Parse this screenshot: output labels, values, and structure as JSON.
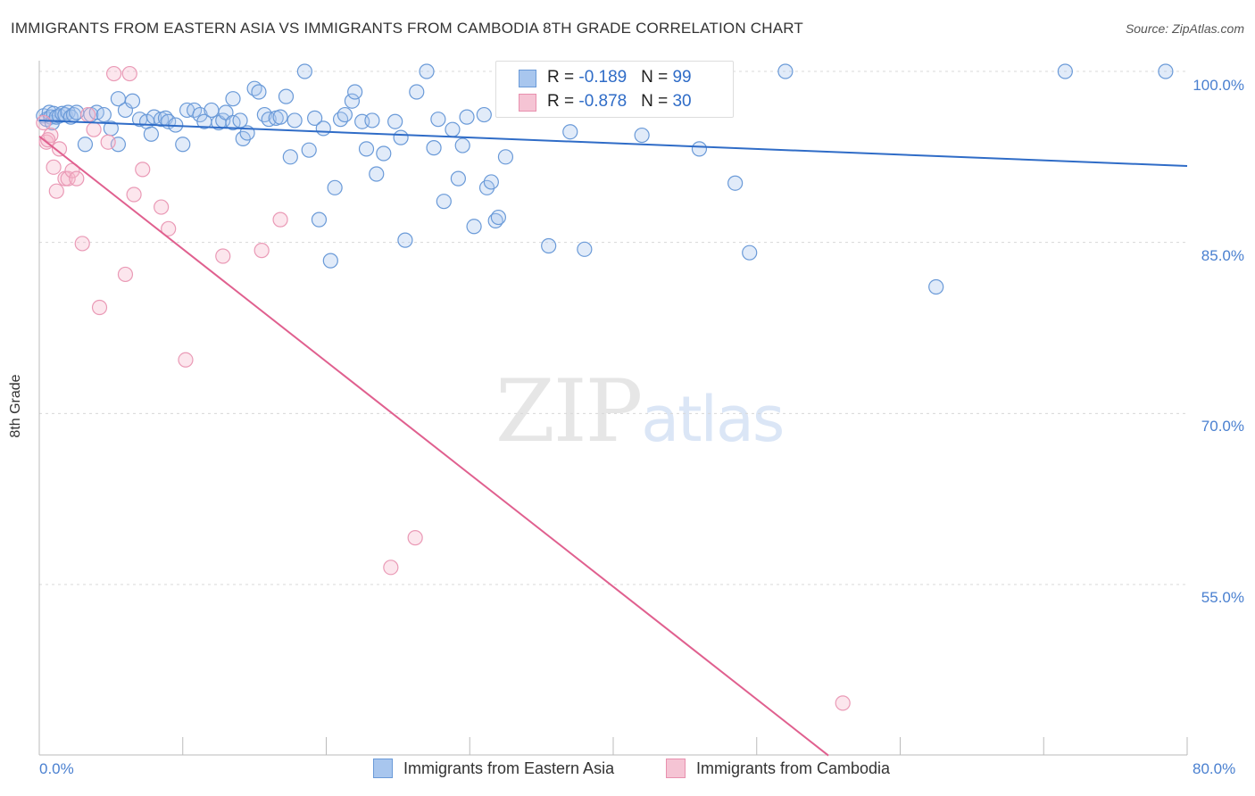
{
  "title": "IMMIGRANTS FROM EASTERN ASIA VS IMMIGRANTS FROM CAMBODIA 8TH GRADE CORRELATION CHART",
  "source": "Source: ZipAtlas.com",
  "watermark": {
    "zip": "ZIP",
    "atlas": "atlas"
  },
  "colors": {
    "blue": "#2f6cc7",
    "blue_fill": "#a8c6ee",
    "pink": "#e0608f",
    "pink_fill": "#f5b8cc",
    "tick_text": "#4a80d0"
  },
  "stats": [
    {
      "r_label": "R = ",
      "r_value": "-0.189",
      "n_label": "N = ",
      "n_value": "99"
    },
    {
      "r_label": "R = ",
      "r_value": "-0.878",
      "n_label": "N = ",
      "n_value": "30"
    }
  ],
  "legend": [
    "Immigrants from Eastern Asia",
    "Immigrants from Cambodia"
  ],
  "chart_data": {
    "type": "scatter",
    "title": "IMMIGRANTS FROM EASTERN ASIA VS IMMIGRANTS FROM CAMBODIA 8TH GRADE CORRELATION CHART",
    "xlabel": "",
    "ylabel": "8th Grade",
    "xlim": [
      0,
      80
    ],
    "ylim": [
      40,
      102.5
    ],
    "x_tick_labels": [
      "0.0%",
      "80.0%"
    ],
    "y_ticks": [
      100,
      85,
      70,
      55
    ],
    "y_tick_labels": [
      "100.0%",
      "85.0%",
      "70.0%",
      "55.0%"
    ],
    "grid": "horizontal dashed",
    "legend_position": "bottom",
    "series": [
      {
        "name": "Immigrants from Eastern Asia",
        "trend": [
          [
            0,
            95.7
          ],
          [
            80,
            91.7
          ]
        ],
        "points": [
          [
            0.3,
            96.1
          ],
          [
            0.5,
            95.8
          ],
          [
            0.7,
            96.4
          ],
          [
            0.8,
            96.0
          ],
          [
            0.9,
            95.5
          ],
          [
            1.0,
            96.3
          ],
          [
            1.2,
            96.0
          ],
          [
            1.4,
            96.1
          ],
          [
            1.6,
            96.3
          ],
          [
            1.8,
            96.2
          ],
          [
            2.0,
            96.4
          ],
          [
            2.2,
            96.0
          ],
          [
            2.4,
            96.2
          ],
          [
            2.6,
            96.4
          ],
          [
            3.2,
            93.6
          ],
          [
            3.6,
            96.2
          ],
          [
            4.0,
            96.4
          ],
          [
            4.5,
            96.2
          ],
          [
            5.0,
            95.0
          ],
          [
            5.5,
            93.6
          ],
          [
            5.5,
            97.6
          ],
          [
            6.0,
            96.6
          ],
          [
            6.5,
            97.4
          ],
          [
            7.0,
            95.8
          ],
          [
            7.5,
            95.6
          ],
          [
            7.8,
            94.5
          ],
          [
            8.0,
            96.0
          ],
          [
            8.5,
            95.8
          ],
          [
            8.8,
            95.9
          ],
          [
            9.0,
            95.6
          ],
          [
            9.5,
            95.3
          ],
          [
            10.0,
            93.6
          ],
          [
            10.3,
            96.6
          ],
          [
            10.8,
            96.6
          ],
          [
            11.2,
            96.2
          ],
          [
            11.5,
            95.6
          ],
          [
            12.0,
            96.6
          ],
          [
            12.5,
            95.5
          ],
          [
            12.8,
            95.7
          ],
          [
            13.0,
            96.4
          ],
          [
            13.5,
            95.5
          ],
          [
            13.5,
            97.6
          ],
          [
            14.0,
            95.7
          ],
          [
            14.2,
            94.1
          ],
          [
            14.5,
            94.6
          ],
          [
            15.0,
            98.5
          ],
          [
            15.3,
            98.2
          ],
          [
            15.7,
            96.2
          ],
          [
            16.0,
            95.8
          ],
          [
            16.5,
            95.9
          ],
          [
            16.8,
            96.0
          ],
          [
            17.2,
            97.8
          ],
          [
            17.5,
            92.5
          ],
          [
            17.8,
            95.7
          ],
          [
            18.5,
            100.0
          ],
          [
            18.8,
            93.1
          ],
          [
            19.2,
            95.9
          ],
          [
            19.5,
            87.0
          ],
          [
            19.8,
            95.0
          ],
          [
            20.3,
            83.4
          ],
          [
            20.6,
            89.8
          ],
          [
            21.0,
            95.8
          ],
          [
            21.3,
            96.2
          ],
          [
            21.8,
            97.4
          ],
          [
            22.0,
            98.2
          ],
          [
            22.5,
            95.6
          ],
          [
            22.8,
            93.2
          ],
          [
            23.2,
            95.7
          ],
          [
            23.5,
            91.0
          ],
          [
            24.0,
            92.8
          ],
          [
            24.8,
            95.6
          ],
          [
            25.2,
            94.2
          ],
          [
            25.5,
            85.2
          ],
          [
            26.3,
            98.2
          ],
          [
            27.0,
            100.0
          ],
          [
            27.5,
            93.3
          ],
          [
            27.8,
            95.8
          ],
          [
            28.2,
            88.6
          ],
          [
            28.8,
            94.9
          ],
          [
            29.2,
            90.6
          ],
          [
            29.5,
            93.5
          ],
          [
            29.8,
            96.0
          ],
          [
            30.3,
            86.4
          ],
          [
            31.0,
            96.2
          ],
          [
            31.2,
            89.8
          ],
          [
            31.5,
            90.3
          ],
          [
            31.8,
            86.9
          ],
          [
            32.0,
            87.2
          ],
          [
            32.5,
            92.5
          ],
          [
            35.5,
            84.7
          ],
          [
            37.0,
            94.7
          ],
          [
            38.0,
            84.4
          ],
          [
            42.0,
            94.4
          ],
          [
            46.0,
            93.2
          ],
          [
            48.5,
            90.2
          ],
          [
            49.5,
            84.1
          ],
          [
            52.0,
            100.0
          ],
          [
            62.5,
            81.1
          ],
          [
            71.5,
            100.0
          ],
          [
            78.5,
            100.0
          ]
        ]
      },
      {
        "name": "Immigrants from Cambodia",
        "trend": [
          [
            0,
            94.3
          ],
          [
            55,
            40
          ]
        ],
        "points": [
          [
            0.3,
            95.5
          ],
          [
            0.5,
            93.8
          ],
          [
            0.8,
            94.4
          ],
          [
            1.0,
            91.6
          ],
          [
            1.2,
            89.5
          ],
          [
            1.4,
            93.2
          ],
          [
            1.8,
            90.6
          ],
          [
            2.0,
            90.6
          ],
          [
            2.3,
            91.3
          ],
          [
            2.6,
            90.6
          ],
          [
            3.0,
            84.9
          ],
          [
            3.4,
            96.2
          ],
          [
            3.8,
            94.9
          ],
          [
            4.2,
            79.3
          ],
          [
            4.8,
            93.8
          ],
          [
            5.2,
            99.8
          ],
          [
            6.0,
            82.2
          ],
          [
            6.3,
            99.8
          ],
          [
            6.6,
            89.2
          ],
          [
            7.2,
            91.4
          ],
          [
            8.5,
            88.1
          ],
          [
            9.0,
            86.2
          ],
          [
            10.2,
            74.7
          ],
          [
            12.8,
            83.8
          ],
          [
            15.5,
            84.3
          ],
          [
            16.8,
            87.0
          ],
          [
            24.5,
            56.5
          ],
          [
            26.2,
            59.1
          ],
          [
            56.0,
            44.6
          ],
          [
            0.6,
            94.0
          ]
        ]
      }
    ]
  }
}
